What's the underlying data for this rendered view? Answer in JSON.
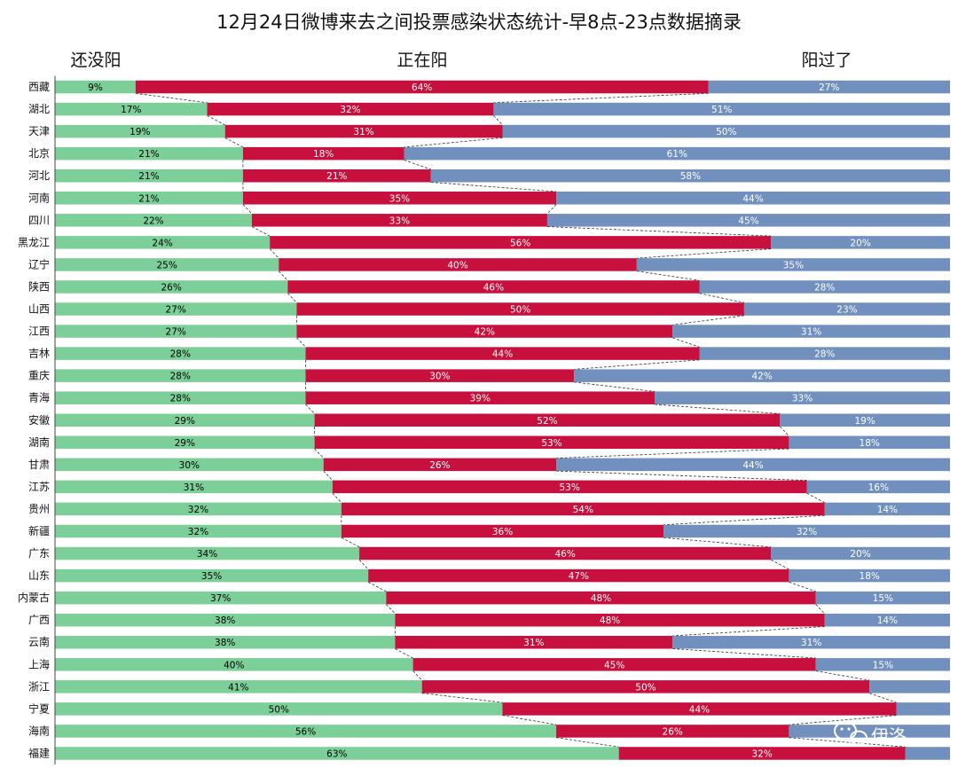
{
  "chart_data": {
    "type": "bar",
    "orientation": "horizontal",
    "stacked": true,
    "title": "12月24日微博来去之间投票感染状态统计-早8点-23点数据摘录",
    "legend_position": "top",
    "categories": [
      "西藏",
      "湖北",
      "天津",
      "北京",
      "河北",
      "河南",
      "四川",
      "黑龙江",
      "辽宁",
      "陕西",
      "山西",
      "江西",
      "吉林",
      "重庆",
      "青海",
      "安徽",
      "湖南",
      "甘肃",
      "江苏",
      "贵州",
      "新疆",
      "广东",
      "山东",
      "内蒙古",
      "广西",
      "云南",
      "上海",
      "浙江",
      "宁夏",
      "海南",
      "福建"
    ],
    "series": [
      {
        "name": "还没阳",
        "color": "#7ccf98",
        "label_color": "#000000",
        "values": [
          9,
          17,
          19,
          21,
          21,
          21,
          22,
          24,
          25,
          26,
          27,
          27,
          28,
          28,
          28,
          29,
          29,
          30,
          31,
          32,
          32,
          34,
          35,
          37,
          38,
          38,
          40,
          41,
          50,
          56,
          63
        ],
        "labels": [
          "9%",
          "17%",
          "19%",
          "21%",
          "21%",
          "21%",
          "22%",
          "24%",
          "25%",
          "26%",
          "27%",
          "27%",
          "28%",
          "28%",
          "28%",
          "29%",
          "29%",
          "30%",
          "31%",
          "32%",
          "32%",
          "34%",
          "35%",
          "37%",
          "38%",
          "38%",
          "40%",
          "41%",
          "50%",
          "56%",
          "63%"
        ]
      },
      {
        "name": "正在阳",
        "color": "#c8103e",
        "label_color": "#ffffff",
        "values": [
          64,
          32,
          31,
          18,
          21,
          35,
          33,
          56,
          40,
          46,
          50,
          42,
          44,
          30,
          39,
          52,
          53,
          26,
          53,
          54,
          36,
          46,
          47,
          48,
          48,
          31,
          45,
          50,
          44,
          26,
          32
        ],
        "labels": [
          "64%",
          "32%",
          "31%",
          "18%",
          "21%",
          "35%",
          "33%",
          "56%",
          "40%",
          "46%",
          "50%",
          "42%",
          "44%",
          "30%",
          "39%",
          "52%",
          "53%",
          "26%",
          "53%",
          "54%",
          "36%",
          "46%",
          "47%",
          "48%",
          "48%",
          "31%",
          "45%",
          "50%",
          "44%",
          "26%",
          "32%"
        ]
      },
      {
        "name": "阳过了",
        "color": "#7190bd",
        "label_color": "#ffffff",
        "values": [
          27,
          51,
          50,
          61,
          58,
          44,
          45,
          20,
          35,
          28,
          23,
          31,
          28,
          42,
          33,
          19,
          18,
          44,
          16,
          14,
          32,
          20,
          18,
          15,
          14,
          31,
          15,
          9,
          6,
          18,
          5
        ],
        "labels": [
          "27%",
          "51%",
          "50%",
          "61%",
          "58%",
          "44%",
          "45%",
          "20%",
          "35%",
          "28%",
          "23%",
          "31%",
          "28%",
          "42%",
          "33%",
          "19%",
          "18%",
          "44%",
          "16%",
          "14%",
          "32%",
          "20%",
          "18%",
          "15%",
          "14%",
          "31%",
          "15%",
          "",
          "",
          "",
          ""
        ]
      }
    ],
    "xlim": [
      0,
      100
    ],
    "grid": false,
    "series_connectors": "dashed"
  },
  "watermark": {
    "text": "伊洛",
    "icon": "wechat-icon"
  }
}
